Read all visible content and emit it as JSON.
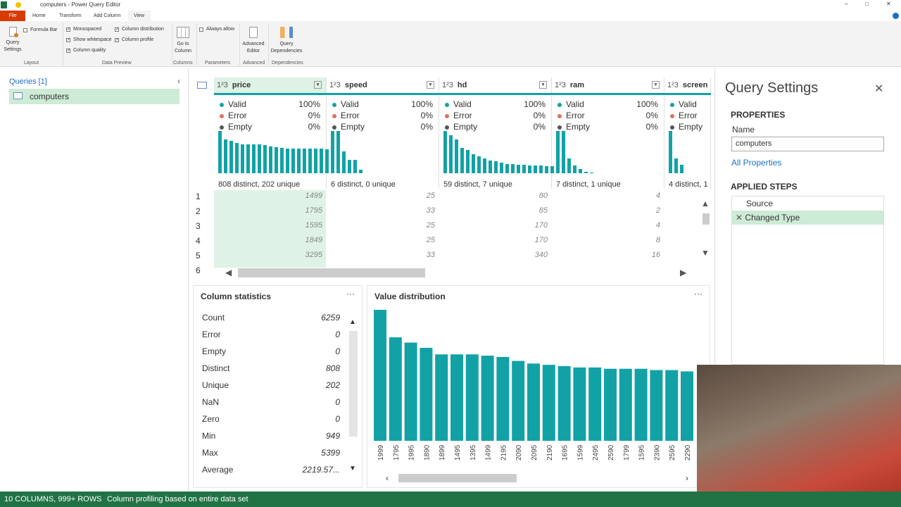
{
  "window": {
    "title": "computers - Power Query Editor"
  },
  "tabs": [
    "File",
    "Home",
    "Transform",
    "Add Column",
    "View"
  ],
  "active_tab": "View",
  "ribbon": {
    "query_settings": "Query Settings",
    "formula_bar": "Formula Bar",
    "monospaced": "Monospaced",
    "show_whitespace": "Show whitespace",
    "column_quality": "Column quality",
    "column_distribution": "Column distribution",
    "column_profile": "Column profile",
    "go_to_column": "Go to Column",
    "always_allow": "Always allow",
    "advanced_editor": "Advanced Editor",
    "query_dependencies": "Query Dependencies",
    "groups": {
      "layout": "Layout",
      "data_preview": "Data Preview",
      "columns": "Columns",
      "parameters": "Parameters",
      "advanced": "Advanced",
      "dependencies": "Dependencies"
    }
  },
  "queries": {
    "header": "Queries [1]",
    "items": [
      "computers"
    ]
  },
  "columns": [
    {
      "name": "price",
      "type": "1²3",
      "valid": "100%",
      "error": "0%",
      "empty": "0%",
      "summary": "808 distinct, 202 unique",
      "hist": [
        1,
        0.8,
        0.76,
        0.72,
        0.68,
        0.68,
        0.68,
        0.68,
        0.66,
        0.63,
        0.61,
        0.6,
        0.59,
        0.58,
        0.58,
        0.58,
        0.58,
        0.58,
        0.58,
        0.56
      ]
    },
    {
      "name": "speed",
      "type": "1²3",
      "valid": "100%",
      "error": "0%",
      "empty": "0%",
      "summary": "6 distinct, 0 unique",
      "hist": [
        1,
        1,
        0.52,
        0.32,
        0.32,
        0.08
      ]
    },
    {
      "name": "hd",
      "type": "1²3",
      "valid": "100%",
      "error": "0%",
      "empty": "0%",
      "summary": "59 distinct, 7 unique",
      "hist": [
        1,
        0.9,
        0.8,
        0.6,
        0.55,
        0.45,
        0.4,
        0.35,
        0.3,
        0.28,
        0.25,
        0.22,
        0.22,
        0.2,
        0.2,
        0.18,
        0.18,
        0.18,
        0.17,
        0.17,
        0.16,
        0.16,
        0.15,
        0.15
      ]
    },
    {
      "name": "ram",
      "type": "1²3",
      "valid": "100%",
      "error": "0%",
      "empty": "0%",
      "summary": "7 distinct, 1 unique",
      "hist": [
        1,
        1,
        0.35,
        0.18,
        0.1,
        0.04,
        0.02
      ]
    },
    {
      "name": "screen",
      "type": "1²3",
      "valid": "Valid",
      "error": "Error",
      "empty": "Empty",
      "summary": "4 distinct, 1",
      "hist": [
        1,
        0.35,
        0.2
      ]
    }
  ],
  "labels": {
    "valid": "Valid",
    "error": "Error",
    "empty": "Empty"
  },
  "rows": [
    {
      "n": "1",
      "cells": [
        "1499",
        "25",
        "80",
        "4"
      ]
    },
    {
      "n": "2",
      "cells": [
        "1795",
        "33",
        "85",
        "2"
      ]
    },
    {
      "n": "3",
      "cells": [
        "1595",
        "25",
        "170",
        "4"
      ]
    },
    {
      "n": "4",
      "cells": [
        "1849",
        "25",
        "170",
        "8"
      ]
    },
    {
      "n": "5",
      "cells": [
        "3295",
        "33",
        "340",
        "16"
      ]
    },
    {
      "n": "6",
      "cells": [
        "",
        "",
        "",
        ""
      ]
    }
  ],
  "column_statistics": {
    "title": "Column statistics",
    "items": [
      {
        "label": "Count",
        "value": "6259"
      },
      {
        "label": "Error",
        "value": "0"
      },
      {
        "label": "Empty",
        "value": "0"
      },
      {
        "label": "Distinct",
        "value": "808"
      },
      {
        "label": "Unique",
        "value": "202"
      },
      {
        "label": "NaN",
        "value": "0"
      },
      {
        "label": "Zero",
        "value": "0"
      },
      {
        "label": "Min",
        "value": "949"
      },
      {
        "label": "Max",
        "value": "5399"
      },
      {
        "label": "Average",
        "value": "2219.57..."
      }
    ]
  },
  "chart_data": {
    "type": "bar",
    "title": "Value distribution",
    "categories": [
      "1999",
      "1795",
      "1995",
      "1890",
      "1899",
      "1495",
      "1395",
      "1499",
      "2195",
      "2090",
      "2095",
      "2190",
      "1695",
      "1599",
      "2495",
      "2590",
      "1799",
      "1595",
      "2390",
      "2595",
      "2290"
    ],
    "values": [
      1.0,
      0.79,
      0.75,
      0.71,
      0.66,
      0.66,
      0.66,
      0.65,
      0.64,
      0.61,
      0.59,
      0.58,
      0.57,
      0.56,
      0.56,
      0.55,
      0.55,
      0.55,
      0.54,
      0.54,
      0.53
    ],
    "color": "#12a2a6"
  },
  "query_settings": {
    "title": "Query Settings",
    "properties": "PROPERTIES",
    "name_label": "Name",
    "name_value": "computers",
    "all_properties": "All Properties",
    "applied_steps": "APPLIED STEPS",
    "steps": [
      "Source",
      "Changed Type"
    ]
  },
  "status": {
    "columns_rows": "10 COLUMNS, 999+ ROWS",
    "profiling": "Column profiling based on entire data set"
  },
  "colors": {
    "accent": "#12a2a6",
    "status_bar": "#217346",
    "file_tab": "#d83b01",
    "selected": "#cdebd6"
  }
}
